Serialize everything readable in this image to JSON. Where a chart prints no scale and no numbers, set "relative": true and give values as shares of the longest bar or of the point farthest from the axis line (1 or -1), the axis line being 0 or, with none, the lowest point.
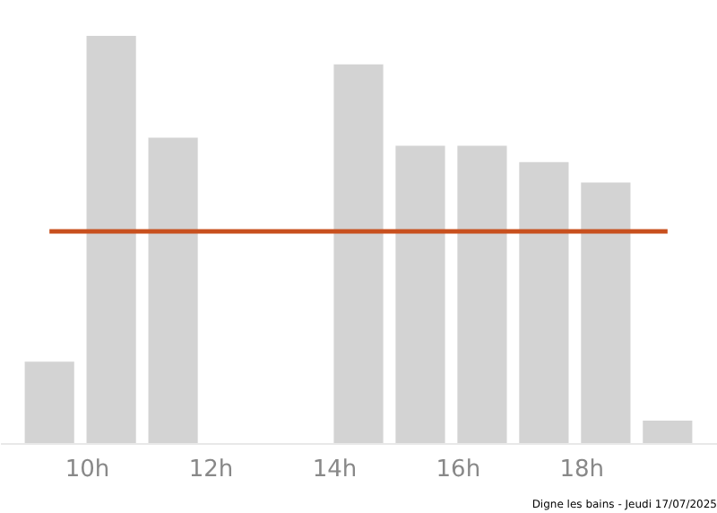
{
  "chart_data": {
    "type": "bar",
    "relative": true,
    "x": [
      9.4,
      10.4,
      11.4,
      12.4,
      13.4,
      14.4,
      15.4,
      16.4,
      17.4,
      18.4,
      19.4
    ],
    "values": [
      0.2,
      1,
      0.75,
      null,
      null,
      0.93,
      0.73,
      0.73,
      0.69,
      0.64,
      0.055
    ],
    "color": "#d3d3d3",
    "xlim": [
      8.6,
      20.2
    ],
    "xticks": [
      {
        "value": 10,
        "label": "10h"
      },
      {
        "value": 12,
        "label": "12h"
      },
      {
        "value": 14,
        "label": "14h"
      },
      {
        "value": 16,
        "label": "16h"
      },
      {
        "value": 18,
        "label": "18h"
      }
    ],
    "ref_lines": [
      {
        "axis": "y",
        "value": 0.52,
        "color": "#c8501e"
      }
    ],
    "annotations": [
      "Digne les bains - Jeudi 17/07/2025"
    ],
    "grid": false
  }
}
